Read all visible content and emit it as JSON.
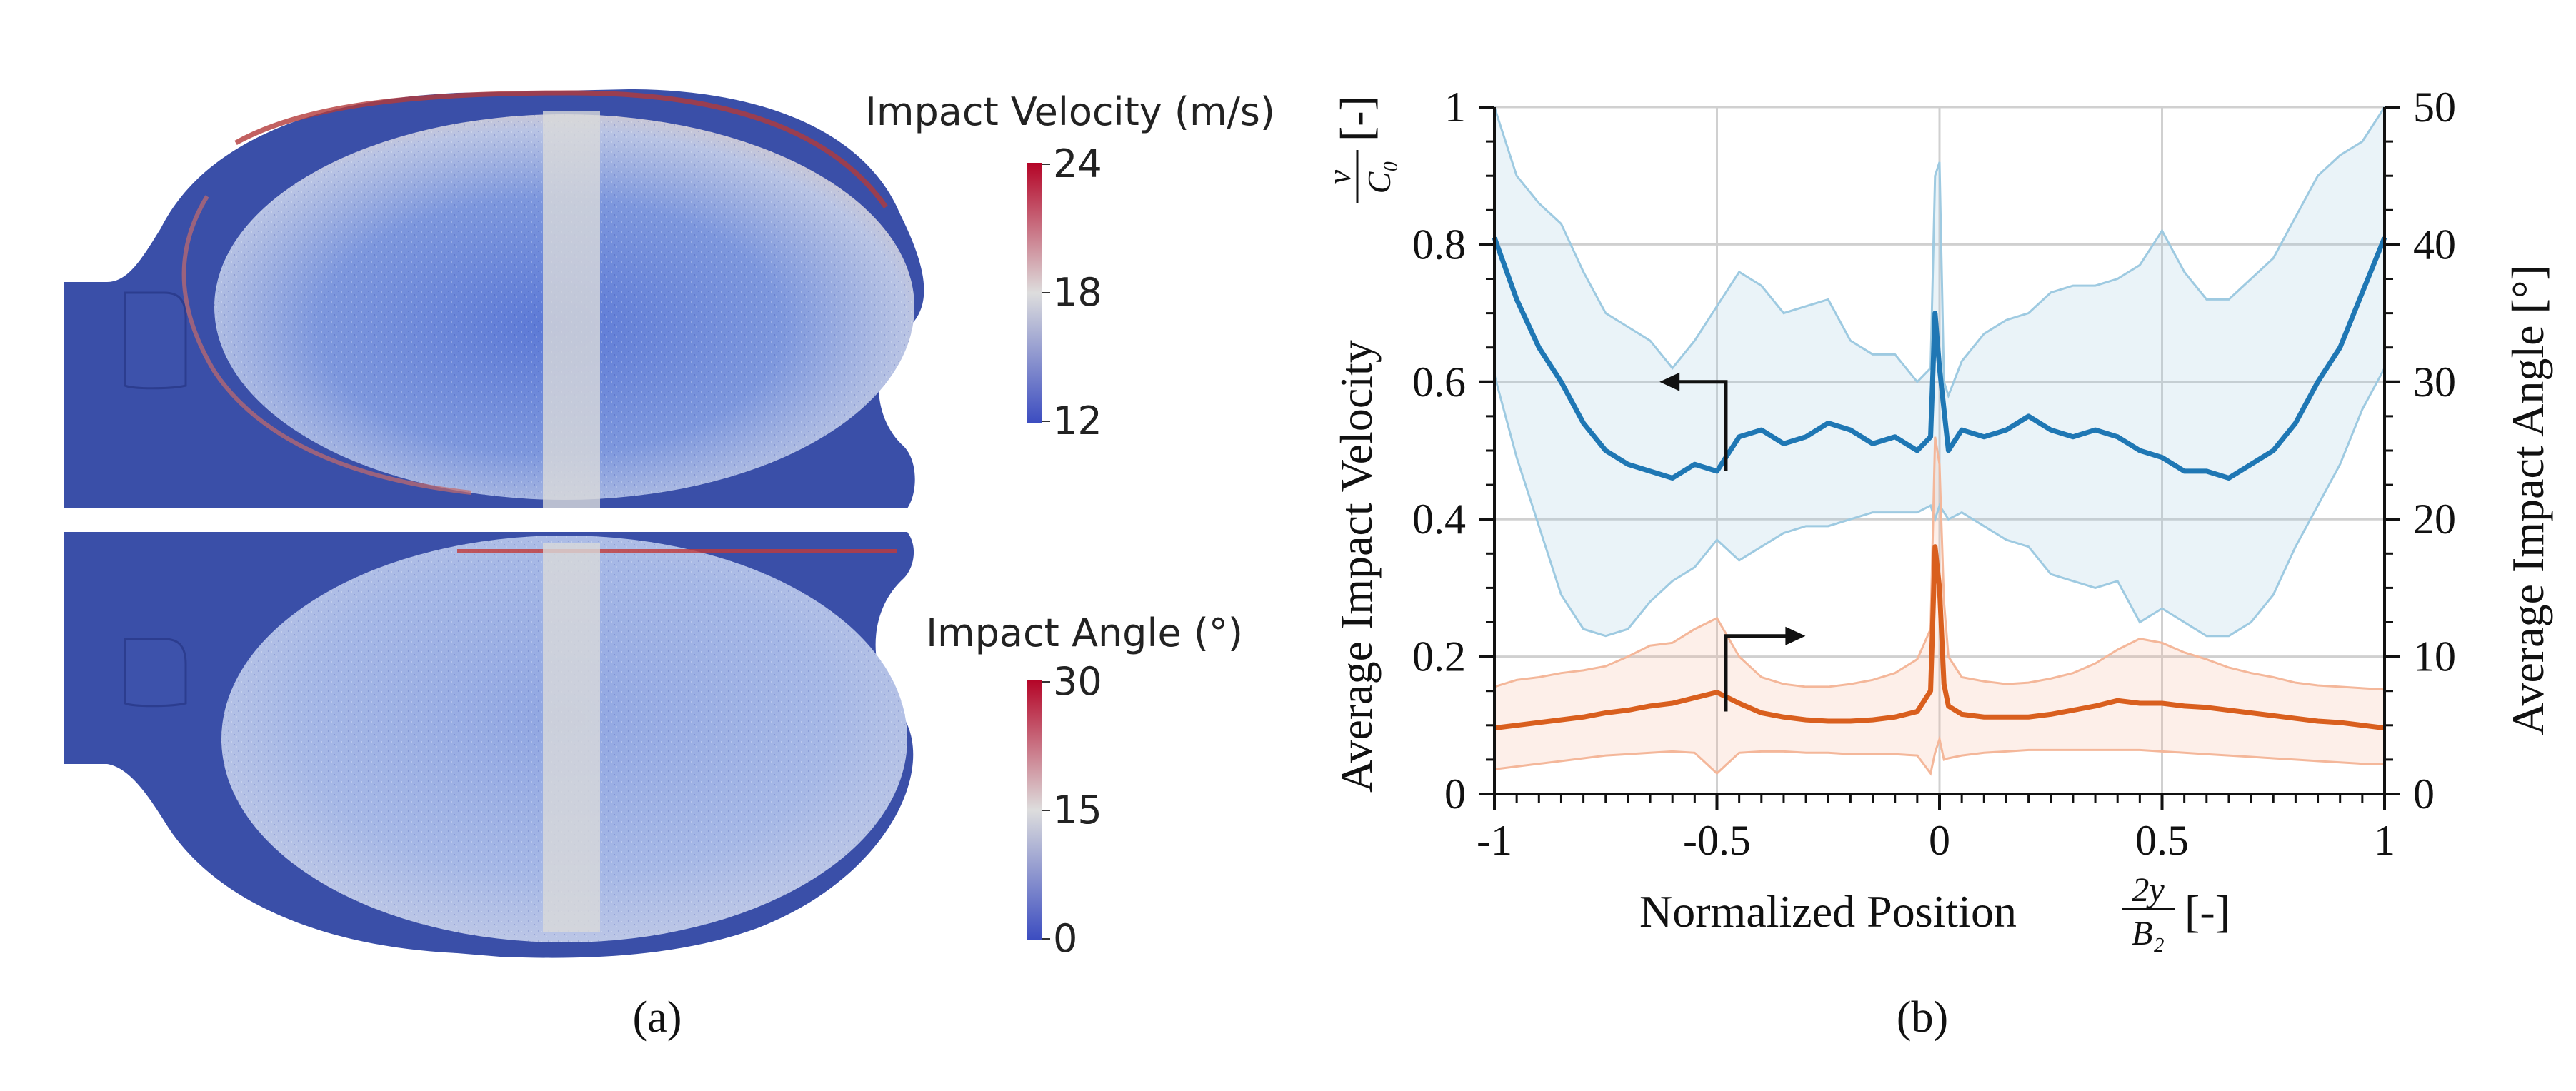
{
  "panel_a": {
    "label": "(a)",
    "velocity_colorbar": {
      "title": "Impact Velocity (m/s)",
      "ticks": [
        "24",
        "18",
        "12"
      ],
      "min": 12,
      "max": 24
    },
    "angle_colorbar": {
      "title": "Impact Angle (°)",
      "ticks": [
        "30",
        "15",
        "0"
      ],
      "min": 0,
      "max": 30
    },
    "colors": {
      "low": "#3b4cc0",
      "mid": "#dddddd",
      "high": "#b40426",
      "body": "#3a4fa8",
      "strip": "#d9d9d9"
    }
  },
  "panel_b": {
    "label": "(b)"
  },
  "chart_data": {
    "type": "line",
    "title": "",
    "xlabel": "Normalized Position",
    "xlabel_fraction": {
      "numerator": "2y",
      "denominator": "B₂"
    },
    "xlabel_unit": "[-]",
    "ylabel_left": "Average Impact Velocity",
    "ylabel_left_fraction": {
      "numerator": "v",
      "denominator": "C₀"
    },
    "ylabel_left_unit": "[-]",
    "ylabel_right": "Average Impact Angle [°]",
    "xlim": [
      -1,
      1
    ],
    "ylim_left": [
      0,
      1
    ],
    "ylim_right": [
      0,
      50
    ],
    "x_ticks": [
      -1,
      -0.5,
      0,
      0.5,
      1
    ],
    "x_tick_labels": [
      "-1",
      "-0.5",
      "0",
      "0.5",
      "1"
    ],
    "y_left_ticks": [
      0,
      0.2,
      0.4,
      0.6,
      0.8,
      1
    ],
    "y_left_tick_labels": [
      "0",
      "0.2",
      "0.4",
      "0.6",
      "0.8",
      "1"
    ],
    "y_right_ticks": [
      0,
      10,
      20,
      30,
      40,
      50
    ],
    "y_right_tick_labels": [
      "0",
      "10",
      "20",
      "30",
      "40",
      "50"
    ],
    "grid": true,
    "series": [
      {
        "name": "Average Impact Velocity",
        "axis": "left",
        "color": "#1f77b4",
        "band_color": "#9ecae1",
        "x": [
          -1.0,
          -0.95,
          -0.9,
          -0.85,
          -0.8,
          -0.75,
          -0.7,
          -0.65,
          -0.6,
          -0.55,
          -0.5,
          -0.45,
          -0.4,
          -0.35,
          -0.3,
          -0.25,
          -0.2,
          -0.15,
          -0.1,
          -0.05,
          -0.02,
          -0.01,
          0.0,
          0.01,
          0.02,
          0.05,
          0.1,
          0.15,
          0.2,
          0.25,
          0.3,
          0.35,
          0.4,
          0.45,
          0.5,
          0.55,
          0.6,
          0.65,
          0.7,
          0.75,
          0.8,
          0.85,
          0.9,
          0.95,
          1.0
        ],
        "mean": [
          0.81,
          0.72,
          0.65,
          0.6,
          0.54,
          0.5,
          0.48,
          0.47,
          0.46,
          0.48,
          0.47,
          0.52,
          0.53,
          0.51,
          0.52,
          0.54,
          0.53,
          0.51,
          0.52,
          0.5,
          0.52,
          0.7,
          0.62,
          0.56,
          0.5,
          0.53,
          0.52,
          0.53,
          0.55,
          0.53,
          0.52,
          0.53,
          0.52,
          0.5,
          0.49,
          0.47,
          0.47,
          0.46,
          0.48,
          0.5,
          0.54,
          0.6,
          0.65,
          0.73,
          0.81
        ],
        "upper": [
          1.0,
          0.9,
          0.86,
          0.83,
          0.76,
          0.7,
          0.68,
          0.66,
          0.62,
          0.66,
          0.71,
          0.76,
          0.74,
          0.7,
          0.71,
          0.72,
          0.66,
          0.64,
          0.64,
          0.6,
          0.62,
          0.9,
          0.92,
          0.6,
          0.58,
          0.63,
          0.67,
          0.69,
          0.7,
          0.73,
          0.74,
          0.74,
          0.75,
          0.77,
          0.82,
          0.76,
          0.72,
          0.72,
          0.75,
          0.78,
          0.84,
          0.9,
          0.93,
          0.95,
          1.0
        ],
        "lower": [
          0.61,
          0.49,
          0.39,
          0.29,
          0.24,
          0.23,
          0.24,
          0.28,
          0.31,
          0.33,
          0.37,
          0.34,
          0.36,
          0.38,
          0.39,
          0.39,
          0.4,
          0.41,
          0.41,
          0.41,
          0.42,
          0.4,
          0.42,
          0.41,
          0.4,
          0.41,
          0.39,
          0.37,
          0.36,
          0.32,
          0.31,
          0.3,
          0.31,
          0.25,
          0.27,
          0.25,
          0.23,
          0.23,
          0.25,
          0.29,
          0.36,
          0.42,
          0.48,
          0.56,
          0.62
        ]
      },
      {
        "name": "Average Impact Angle",
        "axis": "right",
        "color": "#d95f1e",
        "band_color": "#f4b79a",
        "x": [
          -1.0,
          -0.95,
          -0.9,
          -0.85,
          -0.8,
          -0.75,
          -0.7,
          -0.65,
          -0.6,
          -0.55,
          -0.5,
          -0.45,
          -0.4,
          -0.35,
          -0.3,
          -0.25,
          -0.2,
          -0.15,
          -0.1,
          -0.05,
          -0.02,
          -0.01,
          0.0,
          0.01,
          0.02,
          0.05,
          0.1,
          0.15,
          0.2,
          0.25,
          0.3,
          0.35,
          0.4,
          0.45,
          0.5,
          0.55,
          0.6,
          0.65,
          0.7,
          0.75,
          0.8,
          0.85,
          0.9,
          0.95,
          1.0
        ],
        "mean": [
          4.8,
          5.0,
          5.2,
          5.4,
          5.6,
          5.9,
          6.1,
          6.4,
          6.6,
          7.0,
          7.4,
          6.6,
          5.9,
          5.6,
          5.4,
          5.3,
          5.3,
          5.4,
          5.6,
          6.0,
          7.5,
          18.0,
          15.0,
          8.0,
          6.4,
          5.8,
          5.6,
          5.6,
          5.6,
          5.8,
          6.1,
          6.4,
          6.8,
          6.6,
          6.6,
          6.4,
          6.3,
          6.1,
          5.9,
          5.7,
          5.5,
          5.3,
          5.2,
          5.0,
          4.8
        ],
        "upper": [
          7.8,
          8.3,
          8.5,
          8.8,
          9.0,
          9.3,
          10.0,
          10.8,
          11.0,
          12.0,
          12.8,
          10.0,
          8.5,
          8.0,
          7.8,
          7.8,
          8.0,
          8.3,
          8.8,
          9.8,
          12.0,
          26.0,
          24.0,
          14.0,
          10.0,
          8.5,
          8.2,
          8.0,
          8.1,
          8.4,
          8.8,
          9.5,
          10.5,
          11.3,
          11.0,
          10.3,
          9.8,
          9.2,
          8.8,
          8.5,
          8.1,
          7.9,
          7.8,
          7.7,
          7.6
        ],
        "lower": [
          1.8,
          2.0,
          2.2,
          2.4,
          2.6,
          2.8,
          2.9,
          3.0,
          3.1,
          3.0,
          1.5,
          3.0,
          3.1,
          3.1,
          3.0,
          3.0,
          2.9,
          2.9,
          2.9,
          2.8,
          1.5,
          3.0,
          4.0,
          2.5,
          2.6,
          2.8,
          3.0,
          3.1,
          3.2,
          3.2,
          3.2,
          3.2,
          3.2,
          3.2,
          3.1,
          3.0,
          2.9,
          2.8,
          2.7,
          2.6,
          2.5,
          2.4,
          2.3,
          2.2,
          2.2
        ]
      }
    ],
    "annotations": [
      {
        "type": "arrow",
        "direction": "left",
        "target_axis": "left",
        "x": -0.48,
        "y_from": 0.47,
        "y_to": 0.6,
        "x_to": -0.6
      },
      {
        "type": "arrow",
        "direction": "right",
        "target_axis": "right",
        "x": -0.48,
        "y_from": 6.0,
        "y_to": 11.5,
        "x_to": -0.33
      }
    ]
  }
}
